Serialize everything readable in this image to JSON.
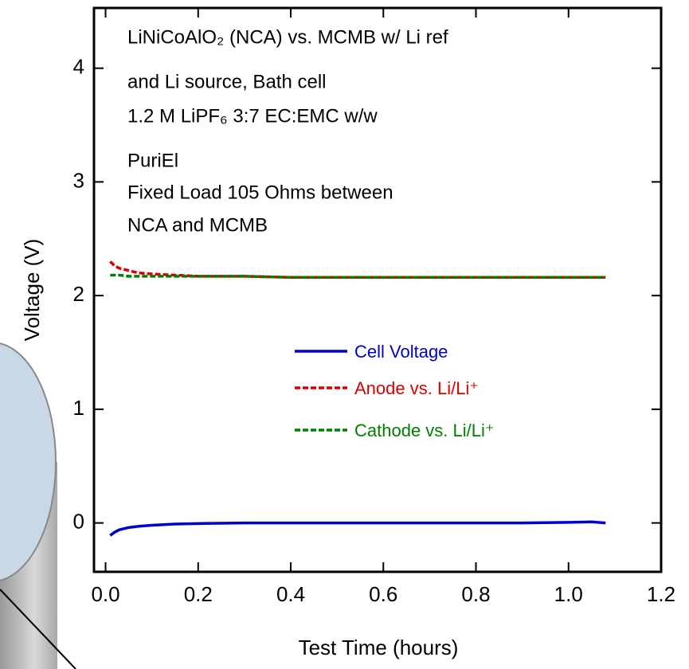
{
  "chart_data": {
    "type": "line",
    "xlabel": "Test Time (hours)",
    "ylabel": "Voltage (V)",
    "annotations": [
      "LiNiCoAlO₂ (NCA) vs. MCMB w/ Li ref",
      "and Li source, Bath cell",
      "1.2 M LiPF₆ 3:7 EC:EMC w/w",
      "PuriEl",
      "Fixed Load 105 Ohms between",
      "NCA and MCMB"
    ],
    "x": [
      0.01,
      0.02,
      0.03,
      0.05,
      0.07,
      0.1,
      0.15,
      0.2,
      0.3,
      0.4,
      0.5,
      0.6,
      0.7,
      0.8,
      0.9,
      1.0,
      1.05,
      1.08
    ],
    "series": [
      {
        "name": "Cell Voltage",
        "color": "#0000cc",
        "dash": "solid",
        "values": [
          -0.11,
          -0.08,
          -0.06,
          -0.04,
          -0.03,
          -0.02,
          -0.01,
          -0.005,
          0,
          0,
          0,
          0,
          0,
          0,
          0,
          0.005,
          0.01,
          0.0
        ]
      },
      {
        "name": "Anode vs. Li/Li⁺",
        "color": "#dd0000",
        "dash": "dashed",
        "values": [
          2.3,
          2.26,
          2.24,
          2.22,
          2.2,
          2.19,
          2.18,
          2.17,
          2.17,
          2.16,
          2.16,
          2.16,
          2.16,
          2.16,
          2.16,
          2.16,
          2.16,
          2.16
        ]
      },
      {
        "name": "Cathode vs. Li/Li⁺",
        "color": "#008000",
        "dash": "dashed",
        "values": [
          2.18,
          2.18,
          2.18,
          2.17,
          2.17,
          2.17,
          2.17,
          2.17,
          2.17,
          2.16,
          2.16,
          2.16,
          2.16,
          2.16,
          2.16,
          2.16,
          2.16,
          2.16
        ]
      }
    ],
    "xlim": [
      -0.025,
      1.2
    ],
    "ylim": [
      -0.43,
      4.53
    ],
    "xticks": [
      {
        "value": 0,
        "label": "0.0"
      },
      0.2,
      0.4,
      0.6,
      0.8,
      {
        "value": 1,
        "label": "1.0"
      },
      1.2
    ],
    "yticks": [
      0,
      1,
      2,
      3,
      4
    ]
  }
}
